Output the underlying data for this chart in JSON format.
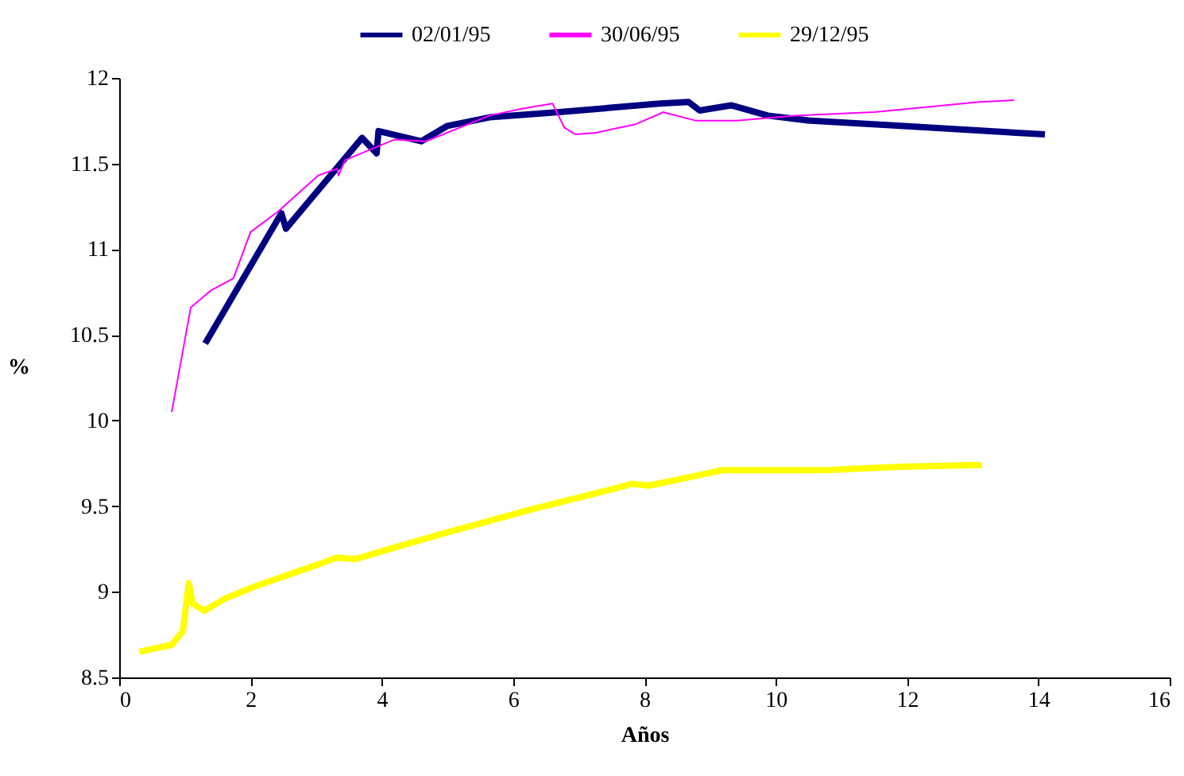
{
  "chart_data": {
    "type": "line",
    "xlabel": "Años",
    "ylabel": "%",
    "xlim": [
      0,
      16
    ],
    "xticks": [
      0,
      2,
      4,
      6,
      8,
      10,
      12,
      14,
      16
    ],
    "ylim": [
      8.5,
      12
    ],
    "yticks": [
      8.5,
      9,
      9.5,
      10,
      10.5,
      11,
      11.5,
      12
    ],
    "grid": false,
    "legend": "top",
    "marker": "none",
    "line_style": "solid",
    "series": [
      {
        "name": "02/01/95",
        "color": "#000080",
        "x": [
          1.31,
          2.47,
          2.54,
          3.7,
          3.92,
          3.95,
          4.6,
          5.0,
          5.64,
          6.7,
          8.23,
          8.67,
          8.84,
          9.32,
          9.88,
          10.53,
          11.9,
          14.1
        ],
        "values": [
          10.45,
          11.21,
          11.12,
          11.65,
          11.56,
          11.69,
          11.63,
          11.72,
          11.77,
          11.8,
          11.85,
          11.86,
          11.81,
          11.84,
          11.78,
          11.75,
          11.72,
          11.67
        ]
      },
      {
        "name": "30/06/95",
        "color": "#ff00ff",
        "x": [
          0.8,
          1.09,
          1.4,
          1.74,
          2.0,
          2.42,
          3.03,
          3.32,
          3.34,
          3.44,
          4.19,
          4.67,
          5.64,
          6.13,
          6.6,
          6.78,
          6.95,
          7.26,
          7.87,
          8.23,
          8.28,
          8.79,
          9.4,
          10.29,
          11.5,
          13.1,
          13.63
        ],
        "values": [
          10.05,
          10.66,
          10.76,
          10.83,
          11.1,
          11.22,
          11.43,
          11.47,
          11.43,
          11.52,
          11.64,
          11.63,
          11.78,
          11.82,
          11.85,
          11.71,
          11.67,
          11.68,
          11.73,
          11.79,
          11.8,
          11.75,
          11.75,
          11.78,
          11.8,
          11.86,
          11.87
        ]
      },
      {
        "name": "29/12/95",
        "color": "#ffff00",
        "x": [
          0.31,
          0.8,
          0.97,
          1.06,
          1.12,
          1.3,
          1.61,
          2.06,
          2.96,
          3.32,
          3.59,
          4.03,
          4.93,
          6.27,
          7.62,
          7.8,
          8.07,
          9.19,
          10.76,
          11.93,
          13.14
        ],
        "values": [
          8.65,
          8.69,
          8.77,
          9.05,
          8.93,
          8.89,
          8.96,
          9.03,
          9.15,
          9.2,
          9.19,
          9.24,
          9.34,
          9.48,
          9.61,
          9.63,
          9.62,
          9.71,
          9.71,
          9.73,
          9.74
        ]
      }
    ]
  }
}
